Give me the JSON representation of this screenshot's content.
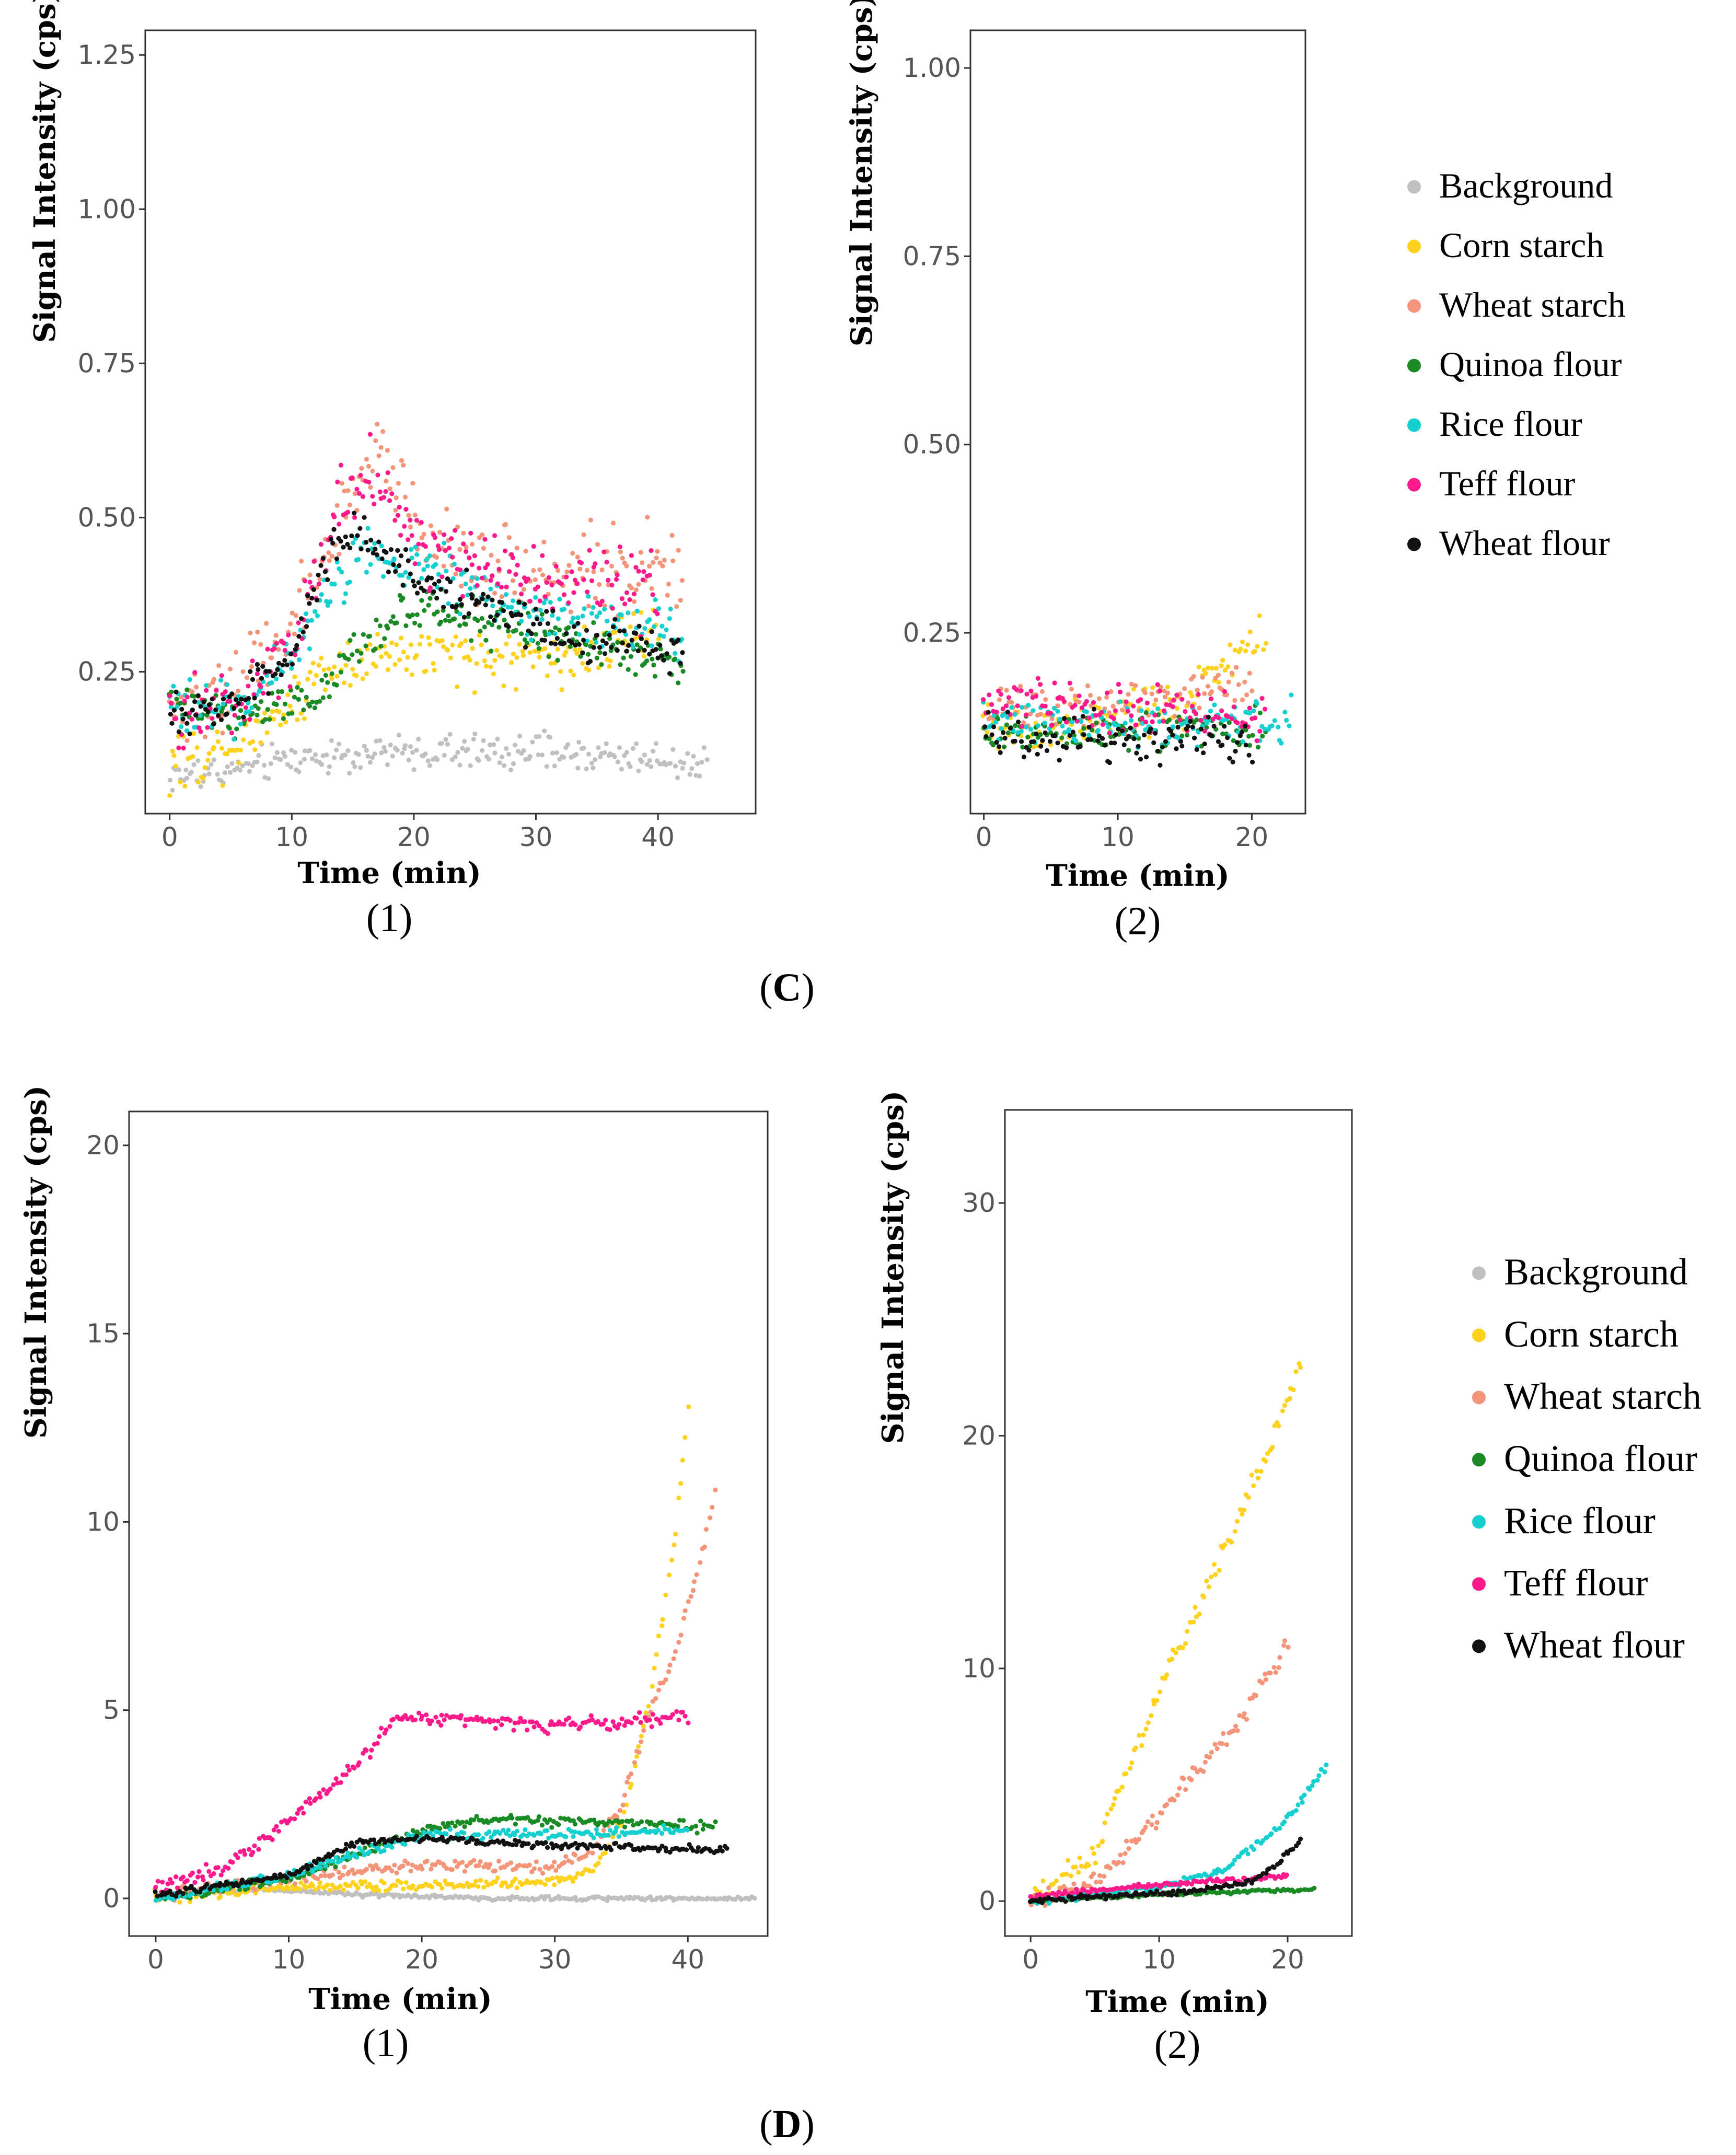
{
  "series_names": [
    "Background",
    "Corn starch",
    "Wheat starch",
    "Quinoa flour",
    "Rice flour",
    "Teff flour",
    "Wheat flour"
  ],
  "colors": {
    "Background": "#c0c0c0",
    "Corn starch": "#ffd21f",
    "Wheat starch": "#f4957a",
    "Quinoa flour": "#1a8a25",
    "Rice flour": "#16cfcf",
    "Teff flour": "#ff1a8c",
    "Wheat flour": "#111111"
  },
  "panels": [
    {
      "label": "(C)",
      "letter": "C"
    },
    {
      "label": "(D)",
      "letter": "D"
    }
  ],
  "chart_data": [
    {
      "id": "C1",
      "type": "scatter",
      "panel": "C",
      "sublabel": "(1)",
      "xlabel": "Time (min)",
      "ylabel": "Signal Intensity (cps)",
      "xlim": [
        -2,
        48
      ],
      "ylim": [
        0.02,
        1.29
      ],
      "xticks": [
        0,
        10,
        20,
        30,
        40
      ],
      "yticks": [
        0.25,
        0.5,
        0.75,
        1.0,
        1.25
      ],
      "ytick_labels": [
        "0.25",
        "0.50",
        "0.75",
        "1.00",
        "1.25"
      ],
      "series": [
        {
          "name": "Background",
          "noise": 0.022,
          "points": [
            [
              0,
              0.08
            ],
            [
              5,
              0.09
            ],
            [
              10,
              0.11
            ],
            [
              20,
              0.12
            ],
            [
              30,
              0.12
            ],
            [
              40,
              0.11
            ],
            [
              44,
              0.1
            ]
          ]
        },
        {
          "name": "Corn starch",
          "noise": 0.035,
          "points": [
            [
              0,
              0.1
            ],
            [
              5,
              0.13
            ],
            [
              10,
              0.2
            ],
            [
              13,
              0.26
            ],
            [
              17,
              0.28
            ],
            [
              25,
              0.27
            ],
            [
              35,
              0.28
            ],
            [
              40,
              0.32
            ]
          ]
        },
        {
          "name": "Wheat starch",
          "noise": 0.05,
          "points": [
            [
              0,
              0.18
            ],
            [
              6,
              0.24
            ],
            [
              10,
              0.33
            ],
            [
              15,
              0.55
            ],
            [
              17,
              0.6
            ],
            [
              22,
              0.45
            ],
            [
              30,
              0.41
            ],
            [
              40,
              0.42
            ],
            [
              42,
              0.4
            ]
          ]
        },
        {
          "name": "Quinoa flour",
          "noise": 0.025,
          "points": [
            [
              0,
              0.2
            ],
            [
              5,
              0.18
            ],
            [
              10,
              0.2
            ],
            [
              13,
              0.22
            ],
            [
              16,
              0.3
            ],
            [
              20,
              0.35
            ],
            [
              30,
              0.31
            ],
            [
              40,
              0.27
            ],
            [
              42,
              0.26
            ]
          ]
        },
        {
          "name": "Rice flour",
          "noise": 0.035,
          "points": [
            [
              0,
              0.18
            ],
            [
              6,
              0.2
            ],
            [
              10,
              0.27
            ],
            [
              13,
              0.38
            ],
            [
              16,
              0.45
            ],
            [
              20,
              0.43
            ],
            [
              30,
              0.34
            ],
            [
              40,
              0.32
            ],
            [
              42,
              0.3
            ]
          ]
        },
        {
          "name": "Teff flour",
          "noise": 0.045,
          "points": [
            [
              0,
              0.17
            ],
            [
              6,
              0.21
            ],
            [
              10,
              0.3
            ],
            [
              14,
              0.52
            ],
            [
              17,
              0.57
            ],
            [
              20,
              0.47
            ],
            [
              25,
              0.42
            ],
            [
              35,
              0.4
            ],
            [
              40,
              0.38
            ]
          ]
        },
        {
          "name": "Wheat flour",
          "noise": 0.028,
          "points": [
            [
              0,
              0.18
            ],
            [
              5,
              0.19
            ],
            [
              10,
              0.27
            ],
            [
              13,
              0.45
            ],
            [
              15,
              0.48
            ],
            [
              20,
              0.41
            ],
            [
              30,
              0.32
            ],
            [
              40,
              0.29
            ],
            [
              42,
              0.28
            ]
          ]
        }
      ]
    },
    {
      "id": "C2",
      "type": "scatter",
      "panel": "C",
      "sublabel": "(2)",
      "xlabel": "Time (min)",
      "ylabel": "Signal Intensity (cps)",
      "xlim": [
        -1,
        24
      ],
      "ylim": [
        0.01,
        1.05
      ],
      "xticks": [
        0,
        10,
        20
      ],
      "yticks": [
        0.25,
        0.5,
        0.75,
        1.0
      ],
      "ytick_labels": [
        "0.25",
        "0.50",
        "0.75",
        "1.00"
      ],
      "series": [
        {
          "name": "Corn starch",
          "noise": 0.028,
          "points": [
            [
              0,
              0.12
            ],
            [
              8,
              0.13
            ],
            [
              14,
              0.15
            ],
            [
              18,
              0.2
            ],
            [
              21,
              0.24
            ]
          ]
        },
        {
          "name": "Wheat starch",
          "noise": 0.025,
          "points": [
            [
              0,
              0.15
            ],
            [
              10,
              0.15
            ],
            [
              17,
              0.17
            ],
            [
              20,
              0.18
            ]
          ]
        },
        {
          "name": "Quinoa flour",
          "noise": 0.02,
          "points": [
            [
              0,
              0.12
            ],
            [
              10,
              0.12
            ],
            [
              21,
              0.12
            ]
          ]
        },
        {
          "name": "Rice flour",
          "noise": 0.022,
          "points": [
            [
              0,
              0.13
            ],
            [
              10,
              0.13
            ],
            [
              23,
              0.13
            ]
          ]
        },
        {
          "name": "Teff flour",
          "noise": 0.025,
          "points": [
            [
              0,
              0.16
            ],
            [
              10,
              0.15
            ],
            [
              21,
              0.14
            ]
          ]
        },
        {
          "name": "Wheat flour",
          "noise": 0.025,
          "points": [
            [
              0,
              0.11
            ],
            [
              10,
              0.11
            ],
            [
              20,
              0.1
            ]
          ]
        }
      ]
    },
    {
      "id": "D1",
      "type": "scatter",
      "panel": "D",
      "sublabel": "(1)",
      "xlabel": "Time (min)",
      "ylabel": "Signal Intensity (cps)",
      "xlim": [
        -2,
        46
      ],
      "ylim": [
        -1,
        20.9
      ],
      "xticks": [
        0,
        10,
        20,
        30,
        40
      ],
      "yticks": [
        0,
        5,
        10,
        15,
        20
      ],
      "ytick_labels": [
        "0",
        "5",
        "10",
        "15",
        "20"
      ],
      "series": [
        {
          "name": "Background",
          "noise": 0.04,
          "points": [
            [
              0,
              0.1
            ],
            [
              8,
              0.25
            ],
            [
              15,
              0.1
            ],
            [
              25,
              0.0
            ],
            [
              45,
              0.0
            ]
          ]
        },
        {
          "name": "Corn starch",
          "noise": 0.1,
          "points": [
            [
              0,
              0.0
            ],
            [
              10,
              0.3
            ],
            [
              20,
              0.35
            ],
            [
              30,
              0.45
            ],
            [
              33,
              0.8
            ],
            [
              35,
              2.0
            ],
            [
              37,
              5.0
            ],
            [
              39,
              9.5
            ],
            [
              40,
              13.0
            ]
          ]
        },
        {
          "name": "Wheat starch",
          "noise": 0.12,
          "points": [
            [
              0,
              0.1
            ],
            [
              10,
              0.5
            ],
            [
              20,
              0.9
            ],
            [
              30,
              0.85
            ],
            [
              33,
              1.3
            ],
            [
              35,
              2.5
            ],
            [
              37,
              4.8
            ],
            [
              39,
              6.5
            ],
            [
              41,
              9.0
            ],
            [
              42,
              10.8
            ]
          ]
        },
        {
          "name": "Quinoa flour",
          "noise": 0.1,
          "points": [
            [
              0,
              0.0
            ],
            [
              10,
              0.5
            ],
            [
              20,
              1.8
            ],
            [
              25,
              2.1
            ],
            [
              35,
              2.0
            ],
            [
              42,
              1.9
            ]
          ]
        },
        {
          "name": "Rice flour",
          "noise": 0.1,
          "points": [
            [
              0,
              0.0
            ],
            [
              10,
              0.6
            ],
            [
              20,
              1.7
            ],
            [
              30,
              1.7
            ],
            [
              40,
              1.8
            ]
          ]
        },
        {
          "name": "Teff flour",
          "noise": 0.15,
          "points": [
            [
              0,
              0.3
            ],
            [
              5,
              0.8
            ],
            [
              10,
              2.0
            ],
            [
              15,
              3.5
            ],
            [
              18,
              4.8
            ],
            [
              20,
              4.8
            ],
            [
              30,
              4.6
            ],
            [
              40,
              4.8
            ]
          ]
        },
        {
          "name": "Wheat flour",
          "noise": 0.07,
          "points": [
            [
              0,
              0.1
            ],
            [
              10,
              0.6
            ],
            [
              15,
              1.5
            ],
            [
              20,
              1.6
            ],
            [
              30,
              1.4
            ],
            [
              40,
              1.3
            ],
            [
              43,
              1.3
            ]
          ]
        }
      ]
    },
    {
      "id": "D2",
      "type": "scatter",
      "panel": "D",
      "sublabel": "(2)",
      "xlabel": "Time (min)",
      "ylabel": "Signal Intensity (cps)",
      "xlim": [
        -2,
        25
      ],
      "ylim": [
        -1.5,
        34
      ],
      "xticks": [
        0,
        10,
        20
      ],
      "yticks": [
        0,
        10,
        20,
        30
      ],
      "ytick_labels": [
        "0",
        "10",
        "20",
        "30"
      ],
      "series": [
        {
          "name": "Corn starch",
          "noise": 0.35,
          "points": [
            [
              0,
              0.0
            ],
            [
              5,
              2.0
            ],
            [
              10,
              9.0
            ],
            [
              15,
              15.0
            ],
            [
              19,
              20.0
            ],
            [
              21,
              23.0
            ]
          ]
        },
        {
          "name": "Wheat starch",
          "noise": 0.3,
          "points": [
            [
              0,
              0.0
            ],
            [
              5,
              0.8
            ],
            [
              8,
              2.5
            ],
            [
              12,
              5.0
            ],
            [
              16,
              7.5
            ],
            [
              20,
              11.0
            ]
          ]
        },
        {
          "name": "Quinoa flour",
          "noise": 0.05,
          "points": [
            [
              0,
              0.0
            ],
            [
              10,
              0.3
            ],
            [
              22,
              0.5
            ]
          ]
        },
        {
          "name": "Rice flour",
          "noise": 0.12,
          "points": [
            [
              0,
              0.0
            ],
            [
              10,
              0.6
            ],
            [
              15,
              1.3
            ],
            [
              20,
              3.5
            ],
            [
              23,
              5.8
            ]
          ]
        },
        {
          "name": "Teff flour",
          "noise": 0.08,
          "points": [
            [
              0,
              0.2
            ],
            [
              10,
              0.7
            ],
            [
              20,
              1.1
            ]
          ]
        },
        {
          "name": "Wheat flour",
          "noise": 0.08,
          "points": [
            [
              0,
              0.0
            ],
            [
              12,
              0.4
            ],
            [
              17,
              0.8
            ],
            [
              19,
              1.5
            ],
            [
              21,
              2.6
            ]
          ]
        }
      ]
    }
  ]
}
